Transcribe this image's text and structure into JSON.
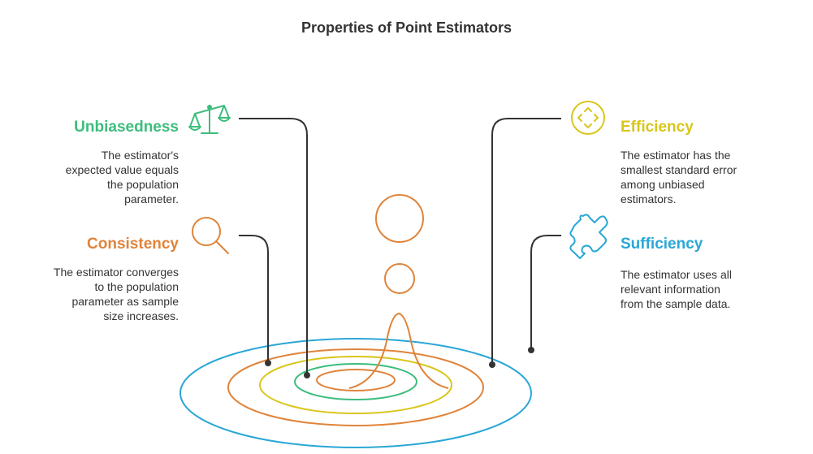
{
  "title": "Properties of Point Estimators",
  "colors": {
    "unbiasedness": "#3dbd7d",
    "consistency": "#e0843a",
    "efficiency": "#d9c61c",
    "sufficiency": "#2aa7d6",
    "connector": "#333333"
  },
  "properties": {
    "unbiasedness": {
      "label": "Unbiasedness",
      "icon": "balance-scale-icon",
      "desc": [
        "The estimator's",
        "expected value equals",
        "the population",
        "parameter."
      ]
    },
    "consistency": {
      "label": "Consistency",
      "icon": "magnifier-icon",
      "desc": [
        "The estimator converges",
        "to the population",
        "parameter as sample",
        "size increases."
      ]
    },
    "efficiency": {
      "label": "Efficiency",
      "icon": "target-focus-icon",
      "desc": [
        "The estimator has the",
        "smallest standard error",
        "among unbiased",
        "estimators."
      ]
    },
    "sufficiency": {
      "label": "Sufficiency",
      "icon": "puzzle-piece-icon",
      "desc": [
        "The estimator uses all",
        "relevant information",
        "from the sample data."
      ]
    }
  }
}
